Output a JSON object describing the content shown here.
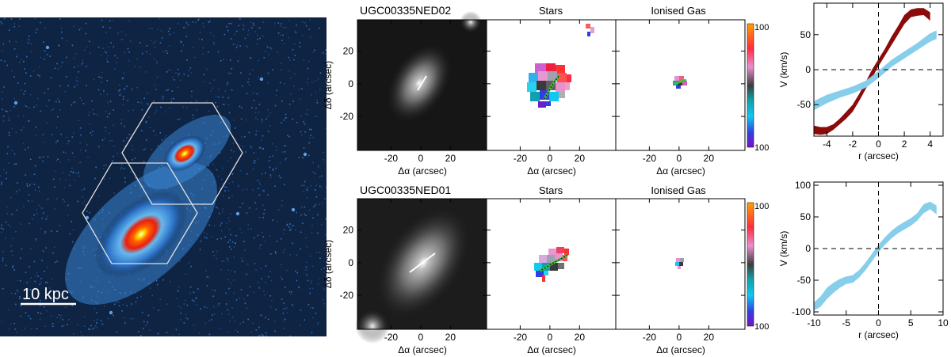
{
  "composite_image": {
    "scale_bar_label": "10 kpc"
  },
  "colorbar": {
    "top_label": "100",
    "bottom_label": "100"
  },
  "rows": [
    {
      "galaxy_name": "UGC00335NED02",
      "stars_title": "Stars",
      "gas_title": "Ionised Gas",
      "ylabel": "Δδ (arcsec)",
      "xlabel": "Δα  (arcsec)",
      "y_ticks": [
        "20",
        "0",
        "-20"
      ],
      "x_ticks": [
        "-20",
        "0",
        "20"
      ]
    },
    {
      "galaxy_name": "UGC00335NED01",
      "stars_title": "Stars",
      "gas_title": "Ionised Gas",
      "ylabel": "Δδ (arcsec)",
      "xlabel": "Δα  (arcsec)",
      "y_ticks": [
        "20",
        "0",
        "-20"
      ],
      "x_ticks": [
        "-20",
        "0",
        "20"
      ]
    }
  ],
  "chart_data": [
    {
      "type": "area",
      "xlabel": "r (arcsec)",
      "ylabel": "V (km/s)",
      "xlim": [
        -5,
        5
      ],
      "ylim": [
        -95,
        95
      ],
      "x_ticks": [
        -4,
        -2,
        0,
        2,
        4
      ],
      "y_ticks": [
        -50,
        0,
        50
      ],
      "series": [
        {
          "color": "#8b0a0a",
          "x": [
            -5,
            -4.5,
            -4,
            -3.5,
            -3,
            -2.5,
            -2,
            -1.5,
            -1,
            -0.5,
            0,
            0.5,
            1,
            1.5,
            2,
            2.5,
            3,
            3.5,
            4
          ],
          "lo": [
            -92,
            -93,
            -92,
            -86,
            -78,
            -70,
            -60,
            -45,
            -28,
            -12,
            5,
            20,
            35,
            50,
            65,
            75,
            77,
            78,
            70
          ],
          "hi": [
            -80,
            -82,
            -82,
            -78,
            -70,
            -60,
            -50,
            -35,
            -18,
            0,
            15,
            30,
            47,
            62,
            78,
            86,
            88,
            88,
            82
          ]
        },
        {
          "color": "#87ceeb",
          "x": [
            -5,
            -4,
            -3,
            -2,
            -1,
            0,
            1,
            2,
            3,
            4,
            4.5
          ],
          "lo": [
            -58,
            -48,
            -40,
            -34,
            -26,
            -12,
            4,
            16,
            28,
            40,
            44
          ],
          "hi": [
            -45,
            -36,
            -30,
            -24,
            -16,
            -2,
            14,
            26,
            38,
            52,
            56
          ]
        }
      ]
    },
    {
      "type": "area",
      "xlabel": "r (arcsec)",
      "ylabel": "V (km/s)",
      "xlim": [
        -10,
        10
      ],
      "ylim": [
        -105,
        105
      ],
      "x_ticks": [
        -10,
        -5,
        0,
        5,
        10
      ],
      "y_ticks": [
        -100,
        -50,
        0,
        50,
        100
      ],
      "series": [
        {
          "color": "#87ceeb",
          "x": [
            -10,
            -9,
            -8,
            -7,
            -6,
            -5,
            -4,
            -3,
            -2,
            -1,
            0,
            1,
            2,
            3,
            4,
            5,
            6,
            7,
            8,
            9
          ],
          "lo": [
            -98,
            -92,
            -80,
            -70,
            -62,
            -56,
            -54,
            -46,
            -34,
            -20,
            -6,
            6,
            16,
            24,
            30,
            36,
            44,
            56,
            62,
            54
          ],
          "hi": [
            -85,
            -76,
            -62,
            -54,
            -48,
            -44,
            -42,
            -34,
            -22,
            -8,
            6,
            18,
            28,
            36,
            42,
            48,
            56,
            70,
            74,
            68
          ]
        }
      ]
    }
  ]
}
